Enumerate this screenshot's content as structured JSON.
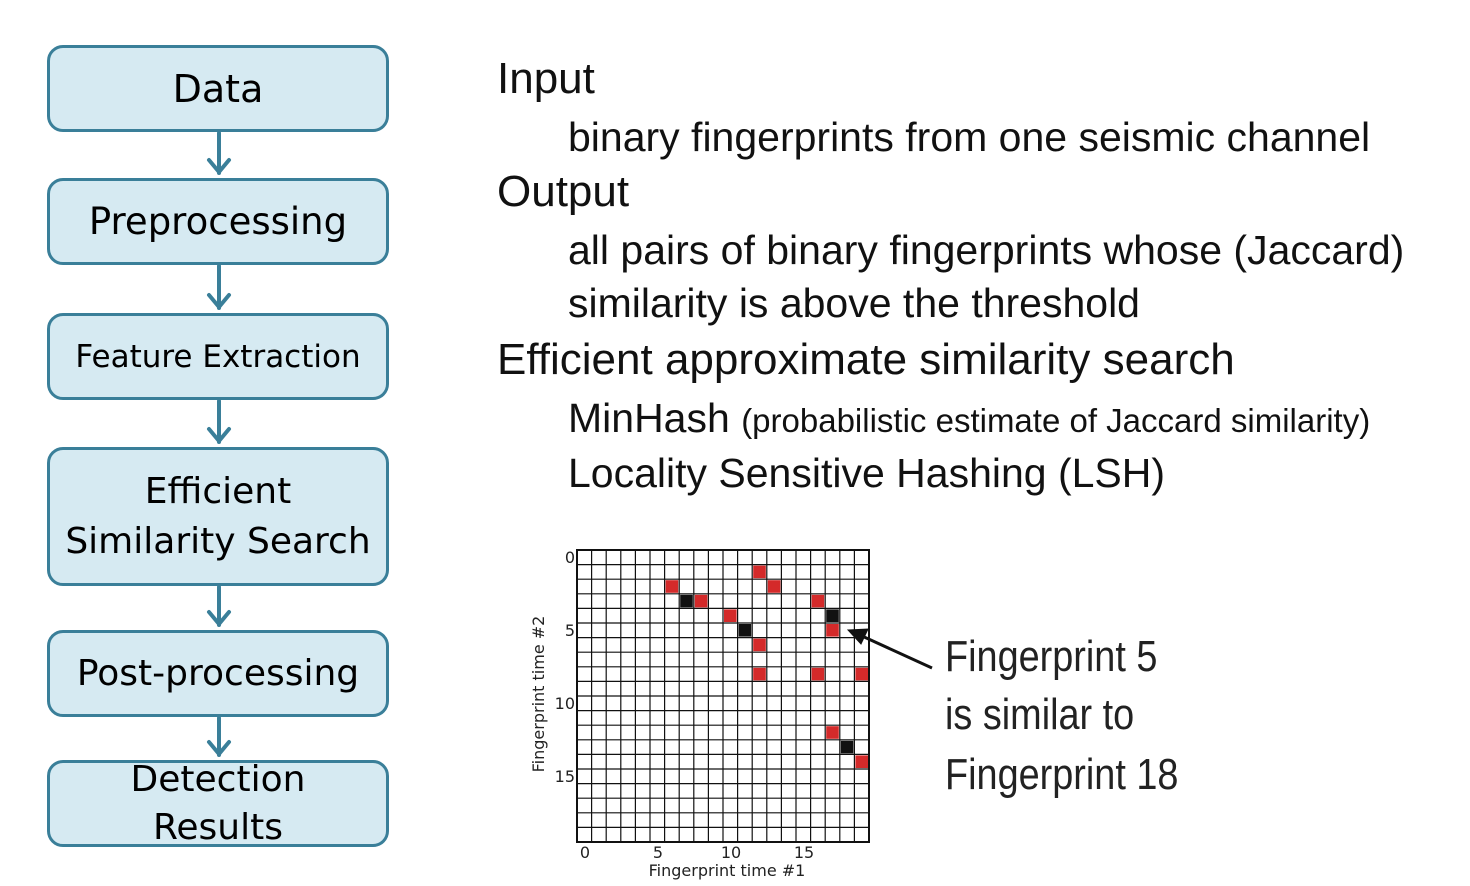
{
  "pipeline": {
    "steps": [
      "Data",
      "Preprocessing",
      "Feature Extraction",
      "Efficient Similarity Search",
      "Post-processing",
      "Detection Results"
    ],
    "efficient_line1": "Efficient",
    "efficient_line2": "Similarity Search",
    "detection_line1": "Detection",
    "detection_line2": "Results",
    "box_fill": "#d6eaf2",
    "box_border": "#3a7f99",
    "arrow_color": "#3a7f99"
  },
  "text": {
    "input_heading": "Input",
    "input_line": "binary fingerprints from one seismic channel",
    "output_heading": "Output",
    "output_line1": "all pairs of binary fingerprints whose (Jaccard)",
    "output_line2": "similarity is above the threshold",
    "efficient_heading": "Efficient approximate similarity search",
    "minhash": "MinHash",
    "minhash_note": "(probabilistic estimate of Jaccard similarity)",
    "lsh": "Locality Sensitive Hashing (LSH)"
  },
  "matrix": {
    "grid_size": 20,
    "xlabel": "Fingerprint time #1",
    "ylabel": "Fingerprint time #2",
    "xticks": [
      "0",
      "5",
      "10",
      "15"
    ],
    "yticks": [
      "0",
      "5",
      "10",
      "15"
    ],
    "red_color": "#d42a2a",
    "black_color": "#111111",
    "red_cells": [
      [
        2,
        6
      ],
      [
        3,
        8
      ],
      [
        4,
        10
      ],
      [
        6,
        12
      ],
      [
        8,
        12
      ],
      [
        1,
        12
      ],
      [
        2,
        13
      ],
      [
        3,
        16
      ],
      [
        5,
        17
      ],
      [
        8,
        16
      ],
      [
        8,
        19
      ],
      [
        12,
        17
      ],
      [
        14,
        19
      ]
    ],
    "black_cells": [
      [
        3,
        7
      ],
      [
        5,
        11
      ],
      [
        4,
        17
      ],
      [
        13,
        18
      ]
    ]
  },
  "annotation": {
    "lines": [
      "Fingerprint 5",
      "is similar to",
      "Fingerprint 18"
    ]
  }
}
